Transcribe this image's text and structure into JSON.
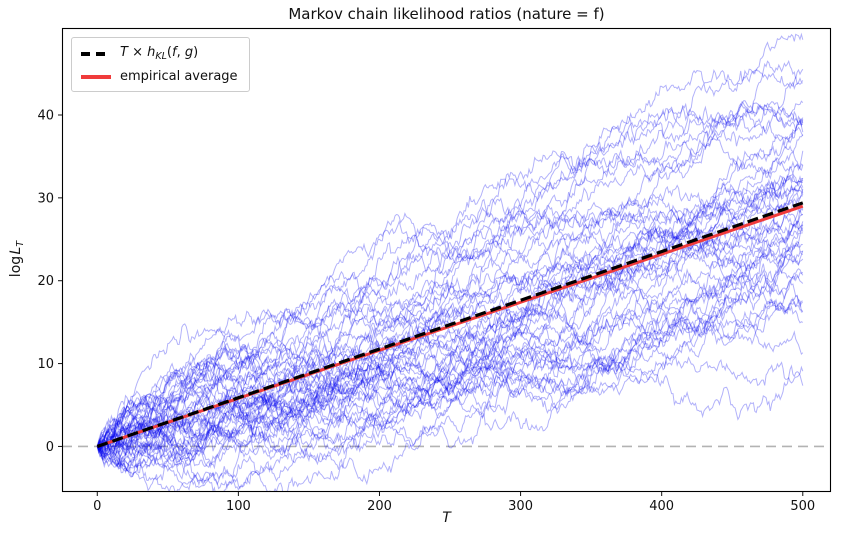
{
  "figure": {
    "title": "Markov chain likelihood ratios (nature = f)"
  },
  "axes": {
    "xlabel": "T",
    "ylabel": "log L_T",
    "ylabel_parts": {
      "log": "log",
      "L": "L",
      "sub": "T"
    }
  },
  "legend": {
    "position": "upper left",
    "items": [
      {
        "label": "T × h_KL(f, g)",
        "parts": {
          "T": "T",
          "times": " × ",
          "h": "h",
          "sub": "KL",
          "open": "(",
          "f": "f",
          "comma": ", ",
          "g": "g",
          "close": ")"
        },
        "color": "#000000",
        "style": "dashed"
      },
      {
        "label": "empirical average",
        "color": "#f03b3b",
        "style": "solid"
      }
    ]
  },
  "chart_data": {
    "type": "line",
    "title": "Markov chain likelihood ratios (nature = f)",
    "xlabel": "T",
    "ylabel": "log L_T",
    "xlim": [
      -25,
      520
    ],
    "ylim": [
      -5.5,
      50.5
    ],
    "xticks": [
      0,
      100,
      200,
      300,
      400,
      500
    ],
    "yticks": [
      0,
      10,
      20,
      30,
      40
    ],
    "grid": false,
    "legend_position": "upper left",
    "zero_line": {
      "y": 0,
      "color": "#b3b3b3",
      "width": 1.6,
      "dash": [
        10,
        6
      ]
    },
    "series": [
      {
        "name": "T × h_KL(f, g)",
        "role": "theory",
        "x": [
          0,
          500
        ],
        "y": [
          0,
          29.4
        ],
        "color": "#000000",
        "width": 3.2,
        "dash": [
          11,
          5
        ]
      },
      {
        "name": "empirical average",
        "role": "empirical",
        "x": [
          0,
          500
        ],
        "y": [
          0,
          29.0
        ],
        "color": "#f03b3b",
        "width": 3,
        "dash": null
      }
    ],
    "sample_paths": {
      "count": 50,
      "steps": 500,
      "start_value": 0,
      "drift_per_step": 0.0586,
      "noise_std_per_step": 0.42,
      "end_mean": 29.3,
      "end_range": [
        10,
        47
      ],
      "color": "#0000ee",
      "opacity": 0.3,
      "width": 1,
      "seed": 11
    }
  }
}
